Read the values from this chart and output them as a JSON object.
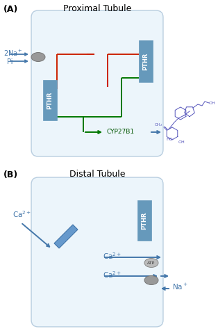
{
  "fig_width": 3.14,
  "fig_height": 4.76,
  "dpi": 100,
  "bg_color": "#ffffff",
  "panel_A_label": "(A)",
  "panel_A_title": "Proximal Tubule",
  "panel_B_label": "(B)",
  "panel_B_title": "Distal Tubule",
  "cell_color": "#ddeef8",
  "cell_edge_color": "#88aac8",
  "pthr_color": "#6699bb",
  "arrow_blue": "#4477aa",
  "arrow_red": "#cc2200",
  "arrow_green": "#007700",
  "label_color": "#334499",
  "mol_color": "#5555bb",
  "gray_oval": "#999999",
  "atp_gray": "#aaaaaa"
}
